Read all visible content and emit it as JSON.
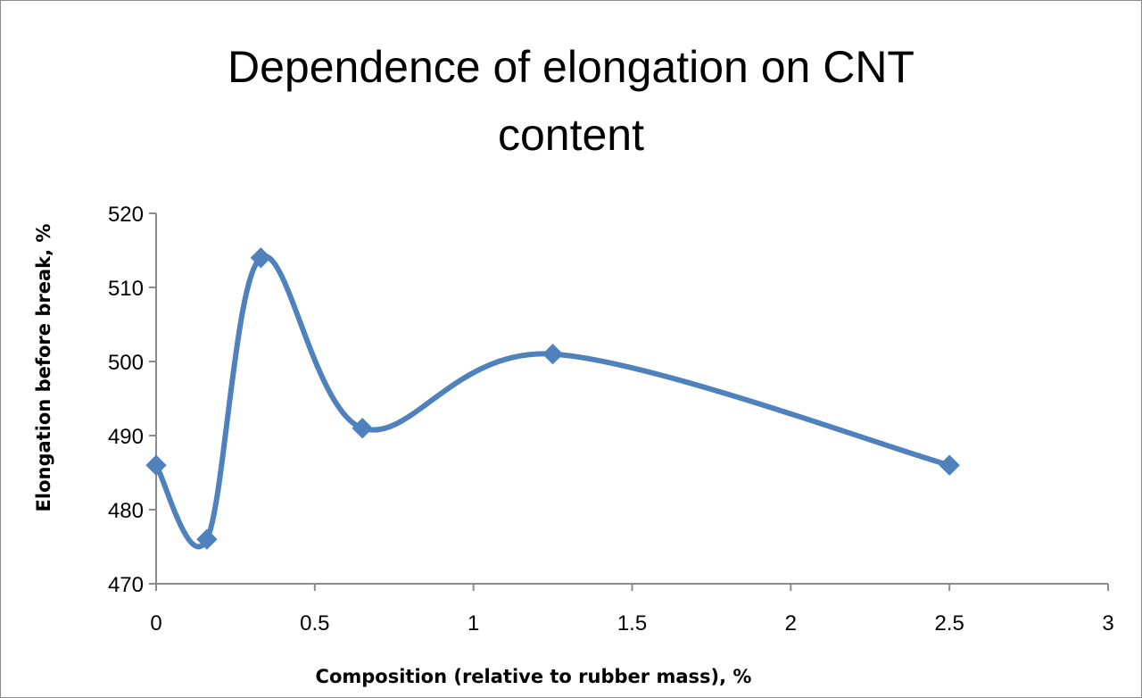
{
  "chart_data": {
    "type": "line",
    "title": "Dependence of elongation on CNT content",
    "title_lines": [
      "Dependence of elongation on CNT",
      "content"
    ],
    "xlabel": "Composition (relative to rubber mass), %",
    "ylabel": "Elongation before break, %",
    "xlim": [
      0,
      3
    ],
    "ylim": [
      470,
      520
    ],
    "xticks": [
      0,
      0.5,
      1,
      1.5,
      2,
      2.5,
      3
    ],
    "xtick_labels": [
      "0",
      "0.5",
      "1",
      "1.5",
      "2",
      "2.5",
      "3"
    ],
    "yticks": [
      470,
      480,
      490,
      500,
      510,
      520
    ],
    "ytick_labels": [
      "470",
      "480",
      "490",
      "500",
      "510",
      "520"
    ],
    "grid": false,
    "legend": "none",
    "smooth": true,
    "marker": "diamond",
    "series": [
      {
        "color": "#4f81bd",
        "x": [
          0,
          0.16,
          0.33,
          0.65,
          1.25,
          2.5
        ],
        "y": [
          486,
          476,
          514,
          491,
          501,
          486
        ]
      }
    ]
  }
}
